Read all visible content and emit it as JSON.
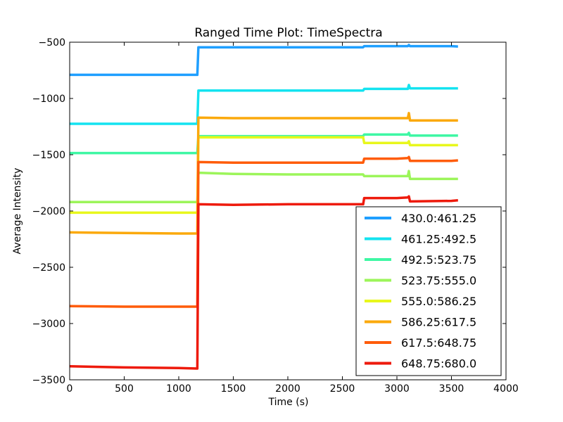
{
  "chart_data": {
    "type": "line",
    "title": "Ranged Time Plot: TimeSpectra",
    "xlabel": "Time (s)",
    "ylabel": "Average Intensity",
    "xlim": [
      0,
      4000
    ],
    "ylim": [
      -3500,
      -500
    ],
    "xticks": [
      0,
      500,
      1000,
      1500,
      2000,
      2500,
      3000,
      3500,
      4000
    ],
    "yticks": [
      -3500,
      -3000,
      -2500,
      -2000,
      -1500,
      -1000,
      -500
    ],
    "xtick_labels": [
      "0",
      "500",
      "1000",
      "1500",
      "2000",
      "2500",
      "3000",
      "3500",
      "4000"
    ],
    "ytick_labels": [
      "−3500",
      "−3000",
      "−2500",
      "−2000",
      "−1500",
      "−1000",
      "−500"
    ],
    "grid": false,
    "legend_position": "lower-right",
    "series": [
      {
        "name": "430.0:461.25",
        "color": "#1f9fff",
        "x": [
          0,
          500,
          1000,
          1170,
          1180,
          1500,
          2000,
          2690,
          2700,
          3000,
          3100,
          3110,
          3120,
          3500,
          3560
        ],
        "y": [
          -790,
          -790,
          -790,
          -790,
          -545,
          -545,
          -545,
          -545,
          -535,
          -535,
          -535,
          -525,
          -535,
          -535,
          -538
        ]
      },
      {
        "name": "461.25:492.5",
        "color": "#14e3f0",
        "x": [
          0,
          500,
          1000,
          1170,
          1180,
          1500,
          2000,
          2690,
          2700,
          3000,
          3100,
          3110,
          3120,
          3500,
          3560
        ],
        "y": [
          -1225,
          -1225,
          -1225,
          -1225,
          -930,
          -930,
          -930,
          -930,
          -915,
          -915,
          -915,
          -880,
          -910,
          -910,
          -910
        ]
      },
      {
        "name": "492.5:523.75",
        "color": "#3ef7a4",
        "x": [
          0,
          500,
          1000,
          1170,
          1180,
          1500,
          2000,
          2690,
          2700,
          3000,
          3100,
          3110,
          3120,
          3500,
          3560
        ],
        "y": [
          -1485,
          -1485,
          -1485,
          -1485,
          -1335,
          -1335,
          -1335,
          -1335,
          -1320,
          -1320,
          -1320,
          -1305,
          -1330,
          -1330,
          -1330
        ]
      },
      {
        "name": "523.75:555.0",
        "color": "#9cf55a",
        "x": [
          0,
          500,
          1000,
          1170,
          1180,
          1500,
          2000,
          2690,
          2700,
          3000,
          3100,
          3110,
          3120,
          3500,
          3560
        ],
        "y": [
          -1920,
          -1920,
          -1920,
          -1920,
          -1660,
          -1670,
          -1675,
          -1675,
          -1690,
          -1690,
          -1690,
          -1645,
          -1715,
          -1715,
          -1715
        ]
      },
      {
        "name": "555.0:586.25",
        "color": "#e8f71c",
        "x": [
          0,
          500,
          1000,
          1170,
          1180,
          1500,
          2000,
          2690,
          2700,
          3000,
          3100,
          3110,
          3120,
          3500,
          3560
        ],
        "y": [
          -2015,
          -2015,
          -2015,
          -2015,
          -1345,
          -1345,
          -1345,
          -1345,
          -1395,
          -1395,
          -1395,
          -1380,
          -1415,
          -1415,
          -1415
        ]
      },
      {
        "name": "586.25:617.5",
        "color": "#fba90c",
        "x": [
          0,
          500,
          1000,
          1170,
          1180,
          1500,
          2000,
          2690,
          2700,
          3000,
          3100,
          3110,
          3120,
          3500,
          3560
        ],
        "y": [
          -2190,
          -2195,
          -2200,
          -2200,
          -1170,
          -1175,
          -1175,
          -1175,
          -1175,
          -1175,
          -1175,
          -1130,
          -1195,
          -1195,
          -1195
        ]
      },
      {
        "name": "617.5:648.75",
        "color": "#ff5c0a",
        "x": [
          0,
          500,
          1000,
          1170,
          1180,
          1500,
          2000,
          2690,
          2700,
          3000,
          3100,
          3110,
          3120,
          3500,
          3560
        ],
        "y": [
          -2845,
          -2850,
          -2850,
          -2850,
          -1565,
          -1570,
          -1570,
          -1570,
          -1535,
          -1535,
          -1530,
          -1520,
          -1555,
          -1555,
          -1550
        ]
      },
      {
        "name": "648.75:680.0",
        "color": "#ee1a0c",
        "x": [
          0,
          500,
          1000,
          1170,
          1180,
          1500,
          2000,
          2690,
          2700,
          3000,
          3100,
          3110,
          3120,
          3500,
          3560
        ],
        "y": [
          -3380,
          -3390,
          -3395,
          -3400,
          -1940,
          -1945,
          -1940,
          -1940,
          -1885,
          -1885,
          -1880,
          -1870,
          -1915,
          -1910,
          -1905
        ]
      }
    ]
  }
}
